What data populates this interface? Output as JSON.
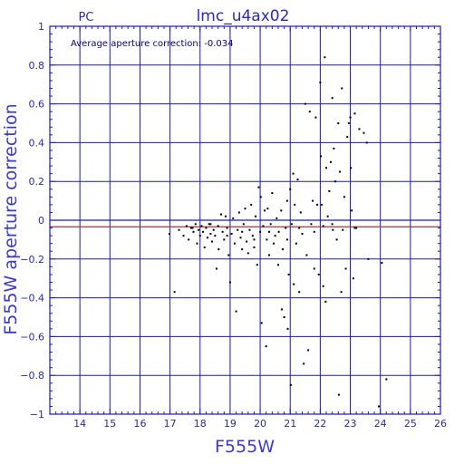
{
  "colors": {
    "axis": "#1a1ab0",
    "grid": "#1a1ab0",
    "points": "#000000",
    "mean_line": "#b03030",
    "text": "#2a2ab8"
  },
  "chart_data": {
    "type": "scatter",
    "title": "lmc_u4ax02",
    "instrument": "PC",
    "xlabel": "F555W",
    "ylabel": "F555W aperture correction",
    "annotation": "Average aperture correction: -0.034",
    "xlim": [
      13,
      26
    ],
    "ylim": [
      -1,
      1
    ],
    "xticks": [
      14,
      15,
      16,
      17,
      18,
      19,
      20,
      21,
      22,
      23,
      24,
      25,
      26
    ],
    "yticks": [
      -1,
      -0.8,
      -0.6,
      -0.4,
      -0.2,
      0,
      0.2,
      0.4,
      0.6,
      0.8,
      1
    ],
    "ytick_labels": [
      "−1",
      "−0.8",
      "−0.6",
      "−0.4",
      "−0.2",
      "0",
      "0.2",
      "0.4",
      "0.6",
      "0.8",
      "1"
    ],
    "grid": true,
    "mean_correction": -0.034,
    "points": [
      [
        16.98,
        -0.07
      ],
      [
        17.15,
        -0.37
      ],
      [
        17.3,
        -0.05
      ],
      [
        17.45,
        -0.08
      ],
      [
        17.55,
        -0.03
      ],
      [
        17.62,
        -0.1
      ],
      [
        17.7,
        -0.04
      ],
      [
        17.78,
        -0.06
      ],
      [
        17.85,
        -0.02
      ],
      [
        17.9,
        -0.12
      ],
      [
        17.95,
        -0.05
      ],
      [
        18.0,
        -0.08
      ],
      [
        18.05,
        -0.03
      ],
      [
        18.1,
        -0.06
      ],
      [
        18.15,
        -0.14
      ],
      [
        18.2,
        -0.04
      ],
      [
        18.25,
        -0.09
      ],
      [
        18.3,
        -0.02
      ],
      [
        18.35,
        -0.07
      ],
      [
        18.4,
        -0.11
      ],
      [
        18.45,
        -0.05
      ],
      [
        18.5,
        -0.08
      ],
      [
        18.55,
        -0.25
      ],
      [
        18.6,
        -0.03
      ],
      [
        18.62,
        -0.15
      ],
      [
        18.7,
        0.03
      ],
      [
        18.75,
        -0.06
      ],
      [
        18.8,
        -0.1
      ],
      [
        18.85,
        0.02
      ],
      [
        18.9,
        -0.04
      ],
      [
        18.95,
        -0.18
      ],
      [
        19.0,
        -0.32
      ],
      [
        19.05,
        -0.07
      ],
      [
        19.1,
        0.01
      ],
      [
        19.15,
        -0.12
      ],
      [
        19.2,
        -0.47
      ],
      [
        19.25,
        -0.05
      ],
      [
        19.3,
        0.04
      ],
      [
        19.35,
        -0.09
      ],
      [
        19.4,
        -0.15
      ],
      [
        19.45,
        -0.02
      ],
      [
        19.5,
        0.06
      ],
      [
        19.55,
        -0.11
      ],
      [
        19.6,
        -0.17
      ],
      [
        19.65,
        -0.05
      ],
      [
        19.7,
        0.08
      ],
      [
        19.75,
        -0.08
      ],
      [
        19.8,
        -0.14
      ],
      [
        19.85,
        0.02
      ],
      [
        19.9,
        -0.23
      ],
      [
        19.95,
        0.17
      ],
      [
        20.0,
        -0.06
      ],
      [
        20.02,
        0.12
      ],
      [
        20.05,
        -0.53
      ],
      [
        20.1,
        -0.03
      ],
      [
        20.15,
        0.05
      ],
      [
        20.2,
        -0.65
      ],
      [
        20.22,
        -0.1
      ],
      [
        20.25,
        0.06
      ],
      [
        20.3,
        -0.18
      ],
      [
        20.35,
        -0.02
      ],
      [
        20.4,
        0.14
      ],
      [
        20.45,
        -0.12
      ],
      [
        20.5,
        -0.08
      ],
      [
        20.55,
        0.01
      ],
      [
        20.6,
        -0.23
      ],
      [
        20.62,
        -0.06
      ],
      [
        20.7,
        0.05
      ],
      [
        20.72,
        -0.46
      ],
      [
        20.75,
        -0.15
      ],
      [
        20.8,
        -0.5
      ],
      [
        20.85,
        -0.04
      ],
      [
        20.9,
        0.1
      ],
      [
        20.92,
        -0.56
      ],
      [
        20.95,
        -0.28
      ],
      [
        21.0,
        0.16
      ],
      [
        21.02,
        -0.85
      ],
      [
        21.05,
        -0.02
      ],
      [
        21.1,
        0.24
      ],
      [
        21.12,
        -0.33
      ],
      [
        21.15,
        0.08
      ],
      [
        21.2,
        -0.12
      ],
      [
        21.25,
        0.21
      ],
      [
        21.3,
        -0.37
      ],
      [
        21.35,
        0.04
      ],
      [
        21.4,
        -0.07
      ],
      [
        21.45,
        -0.74
      ],
      [
        21.5,
        0.6
      ],
      [
        21.55,
        -0.18
      ],
      [
        21.6,
        -0.67
      ],
      [
        21.65,
        0.56
      ],
      [
        21.7,
        -0.02
      ],
      [
        21.75,
        0.1
      ],
      [
        21.8,
        -0.25
      ],
      [
        21.85,
        0.53
      ],
      [
        21.9,
        0.08
      ],
      [
        21.95,
        -0.28
      ],
      [
        22.0,
        0.71
      ],
      [
        22.02,
        0.33
      ],
      [
        22.05,
        0.08
      ],
      [
        22.1,
        -0.34
      ],
      [
        22.15,
        0.84
      ],
      [
        22.18,
        -0.42
      ],
      [
        22.2,
        0.27
      ],
      [
        22.25,
        0.02
      ],
      [
        22.3,
        0.15
      ],
      [
        22.35,
        0.3
      ],
      [
        22.4,
        0.63
      ],
      [
        22.42,
        -0.05
      ],
      [
        22.45,
        0.37
      ],
      [
        22.5,
        0.2
      ],
      [
        22.55,
        -0.1
      ],
      [
        22.6,
        0.5
      ],
      [
        22.62,
        -0.9
      ],
      [
        22.65,
        0.25
      ],
      [
        22.7,
        -0.37
      ],
      [
        22.72,
        0.68
      ],
      [
        22.75,
        -0.05
      ],
      [
        22.8,
        0.12
      ],
      [
        22.85,
        -0.25
      ],
      [
        22.9,
        0.43
      ],
      [
        22.95,
        0.5
      ],
      [
        23.0,
        0.53
      ],
      [
        23.02,
        0.27
      ],
      [
        23.05,
        0.05
      ],
      [
        23.1,
        -0.3
      ],
      [
        23.15,
        0.55
      ],
      [
        23.2,
        -0.04
      ],
      [
        23.3,
        0.47
      ],
      [
        23.45,
        0.45
      ],
      [
        23.55,
        0.4
      ],
      [
        23.6,
        -0.2
      ],
      [
        23.95,
        -0.96
      ],
      [
        24.05,
        -0.22
      ],
      [
        24.2,
        -0.82
      ],
      [
        17.75,
        -0.04
      ],
      [
        18.35,
        -0.02
      ],
      [
        18.9,
        -0.08
      ],
      [
        19.4,
        -0.06
      ],
      [
        19.8,
        -0.1
      ],
      [
        20.3,
        -0.06
      ],
      [
        20.9,
        -0.1
      ],
      [
        21.3,
        -0.04
      ],
      [
        21.8,
        -0.06
      ],
      [
        22.1,
        -0.03
      ],
      [
        22.4,
        -0.02
      ],
      [
        23.15,
        -0.04
      ]
    ]
  }
}
